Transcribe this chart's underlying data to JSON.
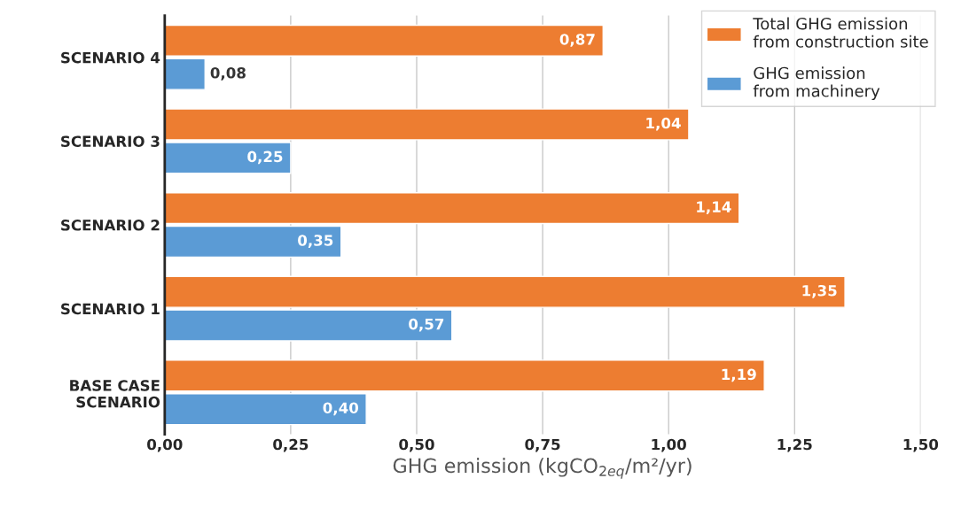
{
  "chart_data": {
    "type": "bar",
    "orientation": "horizontal",
    "categories": [
      "SCENARIO 4",
      "SCENARIO 3",
      "SCENARIO 2",
      "SCENARIO 1",
      "BASE CASE\nSCENARIO"
    ],
    "series": [
      {
        "name": "Total GHG emission\nfrom construction site",
        "color": "#ed7d31",
        "values": [
          0.87,
          1.04,
          1.14,
          1.35,
          1.19
        ],
        "value_labels": [
          "0,87",
          "1,04",
          "1,14",
          "1,35",
          "1,19"
        ]
      },
      {
        "name": "GHG emission\nfrom machinery",
        "color": "#5b9bd5",
        "values": [
          0.08,
          0.25,
          0.35,
          0.57,
          0.4
        ],
        "value_labels": [
          "0,08",
          "0,25",
          "0,35",
          "0,57",
          "0,40"
        ]
      }
    ],
    "xlabel": "GHG emission (kgCO$_{2eq}$/m²/yr)",
    "xlim": [
      0,
      1.5
    ],
    "xticks": [
      {
        "value": 0,
        "label": "0,00"
      },
      {
        "value": 0.25,
        "label": "0,25"
      },
      {
        "value": 0.5,
        "label": "0,50"
      },
      {
        "value": 0.75,
        "label": "0,75"
      },
      {
        "value": 1.0,
        "label": "1,00"
      },
      {
        "value": 1.25,
        "label": "1,25"
      },
      {
        "value": 1.5,
        "label": "1,50"
      }
    ],
    "grid": "x",
    "legend": "top right"
  }
}
